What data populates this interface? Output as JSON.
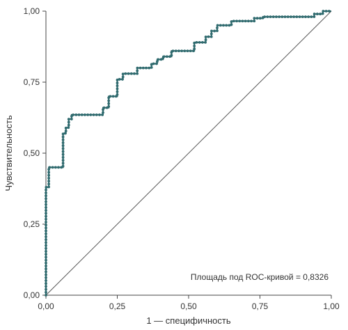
{
  "chart_data": {
    "type": "line",
    "xlabel": "1 — специфичность",
    "ylabel": "Чувствительность",
    "xlim": [
      0,
      1
    ],
    "ylim": [
      0,
      1
    ],
    "x_ticks": [
      "0,00",
      "0,25",
      "0,50",
      "0,75",
      "1,00"
    ],
    "y_ticks": [
      "0,00",
      "0,25",
      "0,50",
      "0,75",
      "1,00"
    ],
    "grid": false,
    "reference_line": {
      "from": [
        0,
        0
      ],
      "to": [
        1,
        1
      ]
    },
    "annotation": "Площадь под ROC-кривой = 0,8326",
    "auc": 0.8326,
    "series": [
      {
        "x": [
          0,
          0,
          0.01,
          0.01,
          0.06,
          0.06,
          0.07,
          0.07,
          0.08,
          0.08,
          0.09,
          0.09,
          0.2,
          0.2,
          0.22,
          0.22,
          0.25,
          0.25,
          0.27,
          0.27,
          0.32,
          0.32,
          0.37,
          0.37,
          0.39,
          0.39,
          0.41,
          0.41,
          0.44,
          0.44,
          0.52,
          0.52,
          0.56,
          0.56,
          0.58,
          0.58,
          0.6,
          0.6,
          0.65,
          0.65,
          0.73,
          0.73,
          0.76,
          0.76,
          0.94,
          0.94,
          0.97,
          0.97,
          1
        ],
        "y": [
          0,
          0.38,
          0.38,
          0.45,
          0.45,
          0.57,
          0.57,
          0.59,
          0.59,
          0.62,
          0.62,
          0.635,
          0.635,
          0.66,
          0.66,
          0.7,
          0.7,
          0.76,
          0.76,
          0.78,
          0.78,
          0.8,
          0.8,
          0.815,
          0.815,
          0.83,
          0.83,
          0.84,
          0.84,
          0.86,
          0.86,
          0.89,
          0.89,
          0.91,
          0.91,
          0.93,
          0.93,
          0.95,
          0.95,
          0.965,
          0.965,
          0.975,
          0.975,
          0.98,
          0.98,
          0.99,
          0.99,
          1,
          1
        ]
      }
    ]
  }
}
